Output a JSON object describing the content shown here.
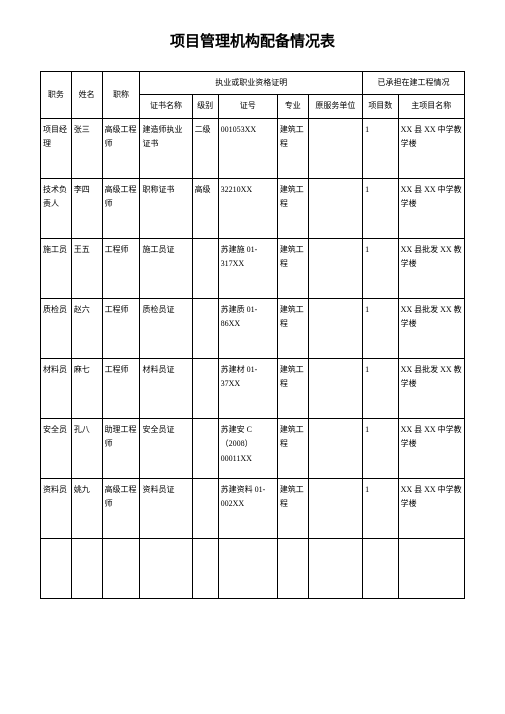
{
  "title": "项目管理机构配备情况表",
  "headers": {
    "position": "职务",
    "name": "姓名",
    "jobTitle": "职称",
    "qualGroup": "执业或职业资格证明",
    "certName": "证书名称",
    "level": "级别",
    "certNo": "证号",
    "major": "专业",
    "origUnit": "原服务单位",
    "projGroup": "已承担在建工程情况",
    "projCount": "项目数",
    "projName": "主项目名称"
  },
  "rows": [
    {
      "position": "项目经理",
      "name": "张三",
      "jobTitle": "高级工程师",
      "certName": "建造师执业证书",
      "level": "二级",
      "certNo": "001053XX",
      "major": "建筑工程",
      "origUnit": "",
      "projCount": "1",
      "projName": "XX 县 XX 中学教学楼"
    },
    {
      "position": "技术负责人",
      "name": "李四",
      "jobTitle": "高级工程师",
      "certName": "职称证书",
      "level": "高级",
      "certNo": "32210XX",
      "major": "建筑工程",
      "origUnit": "",
      "projCount": "1",
      "projName": "XX 县 XX 中学教学楼"
    },
    {
      "position": "施工员",
      "name": "王五",
      "jobTitle": "工程师",
      "certName": "施工员证",
      "level": "",
      "certNo": "苏建施 01-317XX",
      "major": "建筑工程",
      "origUnit": "",
      "projCount": "1",
      "projName": "XX 县批发 XX 教学楼"
    },
    {
      "position": "质检员",
      "name": "赵六",
      "jobTitle": "工程师",
      "certName": "质检员证",
      "level": "",
      "certNo": "苏建质 01-86XX",
      "major": "建筑工程",
      "origUnit": "",
      "projCount": "1",
      "projName": "XX 县批发 XX 教学楼"
    },
    {
      "position": "材料员",
      "name": "麻七",
      "jobTitle": "工程师",
      "certName": "材料员证",
      "level": "",
      "certNo": "苏建材 01-37XX",
      "major": "建筑工程",
      "origUnit": "",
      "projCount": "1",
      "projName": "XX 县批发 XX 教学楼"
    },
    {
      "position": "安全员",
      "name": "孔八",
      "jobTitle": "助理工程师",
      "certName": "安全员证",
      "level": "",
      "certNo": "苏建安 C（2008）00011XX",
      "major": "建筑工程",
      "origUnit": "",
      "projCount": "1",
      "projName": "XX 县 XX 中学教学楼"
    },
    {
      "position": "资料员",
      "name": "姚九",
      "jobTitle": "高级工程师",
      "certName": "资料员证",
      "level": "",
      "certNo": "苏建资料 01-002XX",
      "major": "建筑工程",
      "origUnit": "",
      "projCount": "1",
      "projName": "XX 县 XX 中学教学楼"
    }
  ]
}
